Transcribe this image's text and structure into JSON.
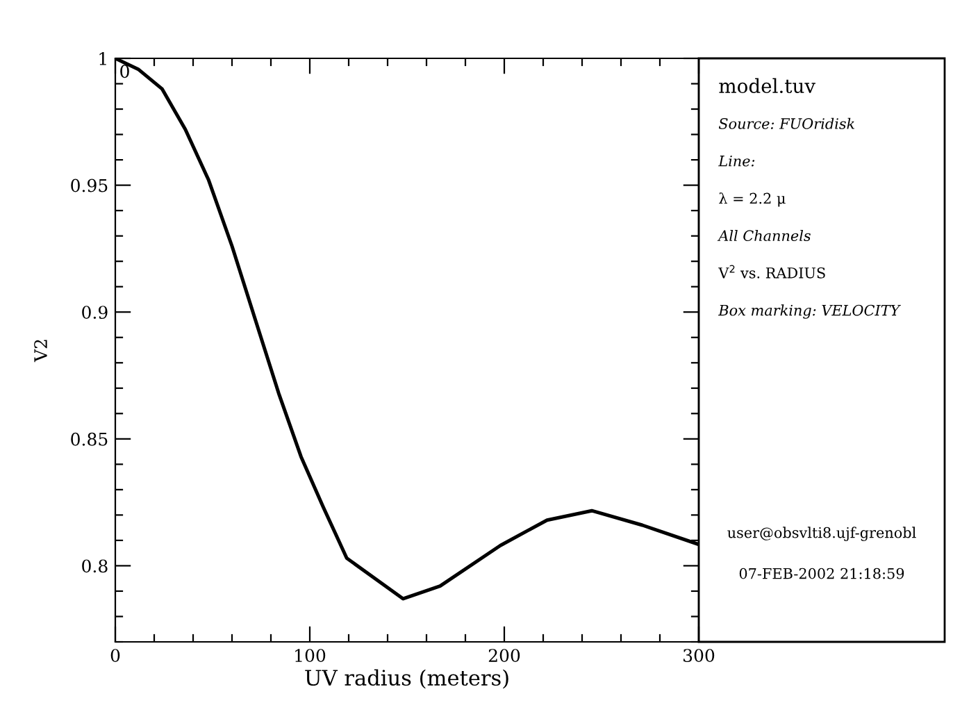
{
  "chart_data": {
    "type": "line",
    "xlabel": "UV radius (meters)",
    "ylabel": "V2",
    "series": [
      {
        "color": "#000000",
        "x": [
          0,
          12,
          24,
          36,
          48,
          60,
          72,
          84,
          95.5,
          107,
          119,
          148,
          167,
          198,
          222,
          245,
          271,
          300
        ],
        "values": [
          1.0,
          0.9956,
          0.988,
          0.972,
          0.952,
          0.926,
          0.897,
          0.868,
          0.843,
          0.823,
          0.803,
          0.787,
          0.792,
          0.808,
          0.818,
          0.8217,
          0.816,
          0.8084
        ]
      }
    ],
    "xlim": [
      0,
      300
    ],
    "ylim": [
      0.77,
      1
    ],
    "xticks": [
      0,
      {
        "value": 20,
        "label": null
      },
      {
        "value": 40,
        "label": null
      },
      {
        "value": 60,
        "label": null
      },
      {
        "value": 80,
        "label": null
      },
      100,
      {
        "value": 120,
        "label": null
      },
      {
        "value": 140,
        "label": null
      },
      {
        "value": 160,
        "label": null
      },
      {
        "value": 180,
        "label": null
      },
      200,
      {
        "value": 220,
        "label": null
      },
      {
        "value": 240,
        "label": null
      },
      {
        "value": 260,
        "label": null
      },
      {
        "value": 280,
        "label": null
      },
      300
    ],
    "yticks": [
      {
        "value": 0.77,
        "label": null
      },
      {
        "value": 0.78,
        "label": null
      },
      {
        "value": 0.79,
        "label": null
      },
      0.8,
      {
        "value": 0.81,
        "label": null
      },
      {
        "value": 0.82,
        "label": null
      },
      {
        "value": 0.83,
        "label": null
      },
      {
        "value": 0.84,
        "label": null
      },
      0.85,
      {
        "value": 0.86,
        "label": null
      },
      {
        "value": 0.87,
        "label": null
      },
      {
        "value": 0.88,
        "label": null
      },
      {
        "value": 0.89,
        "label": null
      },
      0.9,
      {
        "value": 0.91,
        "label": null
      },
      {
        "value": 0.92,
        "label": null
      },
      {
        "value": 0.93,
        "label": null
      },
      {
        "value": 0.94,
        "label": null
      },
      0.95,
      {
        "value": 0.96,
        "label": null
      },
      {
        "value": 0.97,
        "label": null
      },
      {
        "value": 0.98,
        "label": null
      },
      {
        "value": 0.99,
        "label": null
      },
      1
    ],
    "grid": false,
    "marker": "none",
    "line_style": "solid",
    "annotations": [
      {
        "text": "0",
        "x": 0,
        "y": 1
      },
      "model.tuv",
      "Source: FUOridisk",
      "Line:",
      "λ = 2.2 μ",
      "All Channels",
      "V$^{2}$ vs. RADIUS",
      "Box marking: VELOCITY",
      "user@obsvlti8.ujf-grenobl",
      "07-FEB-2002 21:18:59"
    ]
  }
}
